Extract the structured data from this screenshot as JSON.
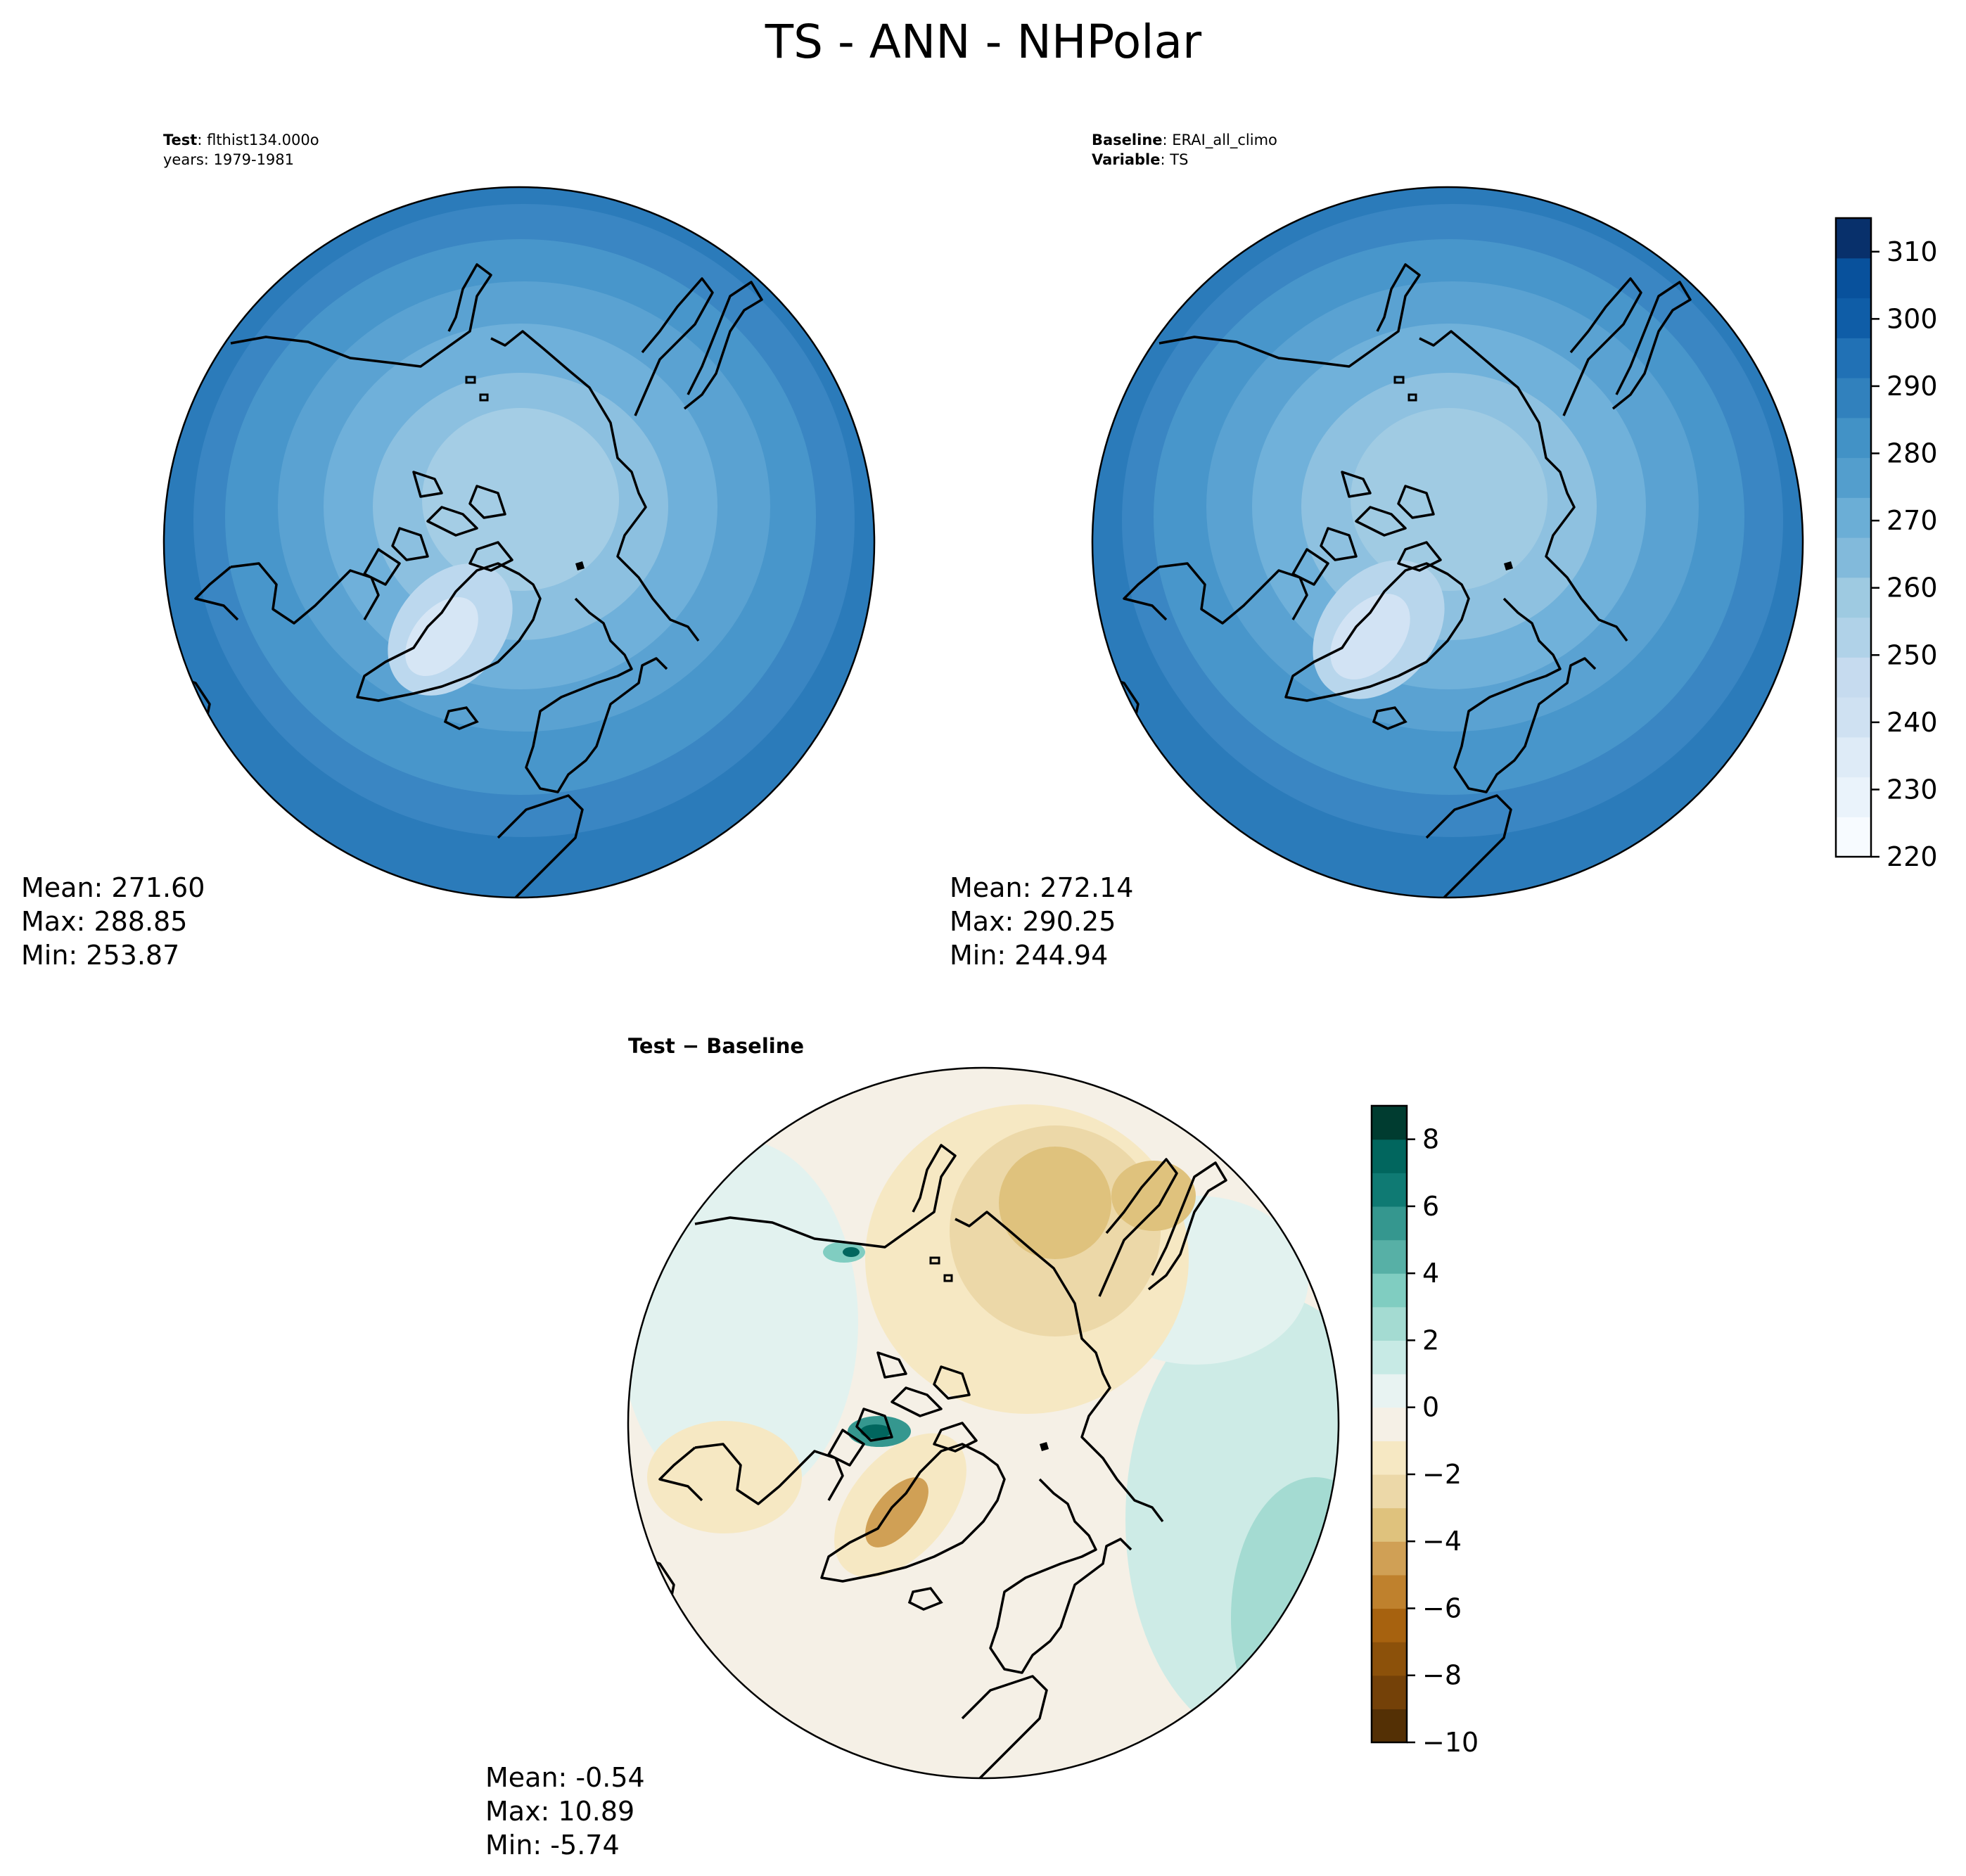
{
  "figure": {
    "title": "TS - ANN - NHPolar"
  },
  "chart_data": [
    {
      "type": "heatmap",
      "panel": "test",
      "header": [
        {
          "key": "Test",
          "value": "flthist134.000o"
        },
        {
          "key": "",
          "value": "years: 1979-1981"
        }
      ],
      "stats": [
        "Mean: 271.60",
        "Max: 288.85",
        "Min: 253.87"
      ],
      "projection": "north-polar-stereographic",
      "value_range": [
        220,
        315
      ],
      "colormap": "Blues"
    },
    {
      "type": "heatmap",
      "panel": "baseline",
      "header": [
        {
          "key": "Baseline",
          "value": "ERAI_all_climo"
        },
        {
          "key": "Variable",
          "value": "TS"
        }
      ],
      "stats": [
        "Mean: 272.14",
        "Max: 290.25",
        "Min: 244.94"
      ],
      "projection": "north-polar-stereographic",
      "value_range": [
        220,
        315
      ],
      "colormap": "Blues"
    },
    {
      "type": "heatmap",
      "panel": "difference",
      "header": [
        {
          "key": "Test − Baseline",
          "value": ""
        }
      ],
      "stats": [
        "Mean: -0.54",
        "Max: 10.89",
        "Min: -5.74"
      ],
      "projection": "north-polar-stereographic",
      "value_range": [
        -10,
        9
      ],
      "colormap": "BrBG"
    }
  ],
  "colorbars": {
    "main": {
      "ticks": [
        "220",
        "230",
        "240",
        "250",
        "260",
        "270",
        "280",
        "290",
        "300",
        "310"
      ],
      "tick_values": [
        220,
        230,
        240,
        250,
        260,
        270,
        280,
        290,
        300,
        310
      ],
      "vmin": 220,
      "vmax": 315,
      "colors": [
        "#f7fbff",
        "#eaf3fb",
        "#deebf7",
        "#cfe1f2",
        "#c6dbef",
        "#b0d2e8",
        "#9ecae1",
        "#82badb",
        "#6baed6",
        "#539ecd",
        "#4292c6",
        "#3181bd",
        "#2171b5",
        "#0f5da7",
        "#08519c",
        "#08306b"
      ]
    },
    "diff": {
      "ticks": [
        "8",
        "6",
        "4",
        "2",
        "0",
        "−2",
        "−4",
        "−6",
        "−8",
        "−10"
      ],
      "tick_values": [
        8,
        6,
        4,
        2,
        0,
        -2,
        -4,
        -6,
        -8,
        -10
      ],
      "vmin": -10,
      "vmax": 9,
      "colors": [
        "#543005",
        "#744108",
        "#8c510a",
        "#a7620f",
        "#bf812d",
        "#d0a055",
        "#dfc27d",
        "#ecd8a8",
        "#f6e8c3",
        "#f5f0e6",
        "#e8f3f2",
        "#c7eae5",
        "#a4dbd2",
        "#80cdc1",
        "#57b0a6",
        "#35978f",
        "#0f7a73",
        "#01665e",
        "#003c30"
      ]
    }
  }
}
